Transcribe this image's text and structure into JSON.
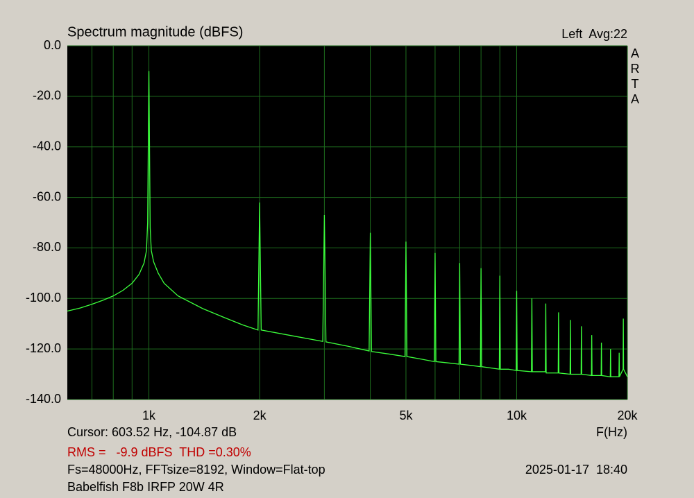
{
  "chart_data": {
    "type": "line",
    "title": "Spectrum magnitude (dBFS)",
    "channel_label": "Left  Avg:22",
    "brand_letters": [
      "A",
      "R",
      "T",
      "A"
    ],
    "x_label": "F(Hz)",
    "cursor": "Cursor: 603.52 Hz, -104.87 dB",
    "rms_thd": "RMS =   -9.9 dBFS  THD =0.30%",
    "settings": "Fs=48000Hz, FFTsize=8192, Window=Flat-top",
    "timestamp": "2025-01-17  18:40",
    "device": "Babelfish F8b IRFP 20W 4R",
    "x_scale": "log",
    "xlim": [
      600,
      20000
    ],
    "ylim": [
      -140,
      0
    ],
    "xticks": [
      {
        "value": 1000,
        "label": "1k"
      },
      {
        "value": 2000,
        "label": "2k"
      },
      {
        "value": 5000,
        "label": "5k"
      },
      {
        "value": 10000,
        "label": "10k"
      },
      {
        "value": 20000,
        "label": "20k"
      }
    ],
    "x_minor_grid": [
      700,
      800,
      900,
      3000,
      4000,
      6000,
      7000,
      8000,
      9000
    ],
    "yticks": [
      {
        "value": 0,
        "label": "0.0"
      },
      {
        "value": -20,
        "label": "-20.0"
      },
      {
        "value": -40,
        "label": "-40.0"
      },
      {
        "value": -60,
        "label": "-60.0"
      },
      {
        "value": -80,
        "label": "-80.0"
      },
      {
        "value": -100,
        "label": "-100.0"
      },
      {
        "value": -120,
        "label": "-120.0"
      },
      {
        "value": -140,
        "label": "-140.0"
      }
    ],
    "grid": true,
    "color": "#3cff3c",
    "x": [
      600,
      650,
      700,
      750,
      800,
      850,
      900,
      940,
      970,
      985,
      992,
      1000,
      1008,
      1015,
      1030,
      1060,
      1100,
      1200,
      1400,
      1600,
      1800,
      1980,
      2000,
      2020,
      2500,
      2970,
      3000,
      3030,
      3500,
      3970,
      4000,
      4030,
      4500,
      4970,
      5000,
      5030,
      5500,
      5970,
      6000,
      6030,
      6500,
      6970,
      7000,
      7030,
      7500,
      7970,
      8000,
      8030,
      8500,
      8970,
      9000,
      9030,
      9500,
      9970,
      10000,
      10030,
      10970,
      11000,
      11030,
      11970,
      12000,
      12030,
      12970,
      13000,
      13030,
      13970,
      14000,
      14030,
      14970,
      15000,
      15030,
      15970,
      16000,
      16030,
      16970,
      17000,
      17030,
      17970,
      18000,
      18030,
      18970,
      19000,
      19030,
      19470,
      19500,
      19530,
      20000
    ],
    "values": [
      -105,
      -103.8,
      -102.3,
      -100.7,
      -99,
      -96.8,
      -94,
      -90.5,
      -86,
      -81,
      -70,
      -10,
      -72,
      -81,
      -85.5,
      -90,
      -94,
      -99,
      -104,
      -107.5,
      -110.5,
      -112.5,
      -62,
      -112.5,
      -115,
      -117,
      -67,
      -117.2,
      -119,
      -120.8,
      -74,
      -121,
      -122,
      -123,
      -77.5,
      -123,
      -124,
      -125,
      -82,
      -125,
      -125.5,
      -126,
      -86,
      -126,
      -126.5,
      -127,
      -88,
      -127,
      -127.5,
      -128,
      -91,
      -128,
      -128,
      -128.5,
      -97,
      -128.5,
      -129,
      -100,
      -129,
      -129,
      -102,
      -129.5,
      -129.5,
      -105.5,
      -129.5,
      -130,
      -108.5,
      -130,
      -130,
      -111,
      -130,
      -130.5,
      -114.5,
      -130.5,
      -130.5,
      -117.5,
      -130.5,
      -131,
      -120,
      -131,
      -131,
      -121.5,
      -131,
      -128,
      -108,
      -128,
      -131
    ]
  }
}
